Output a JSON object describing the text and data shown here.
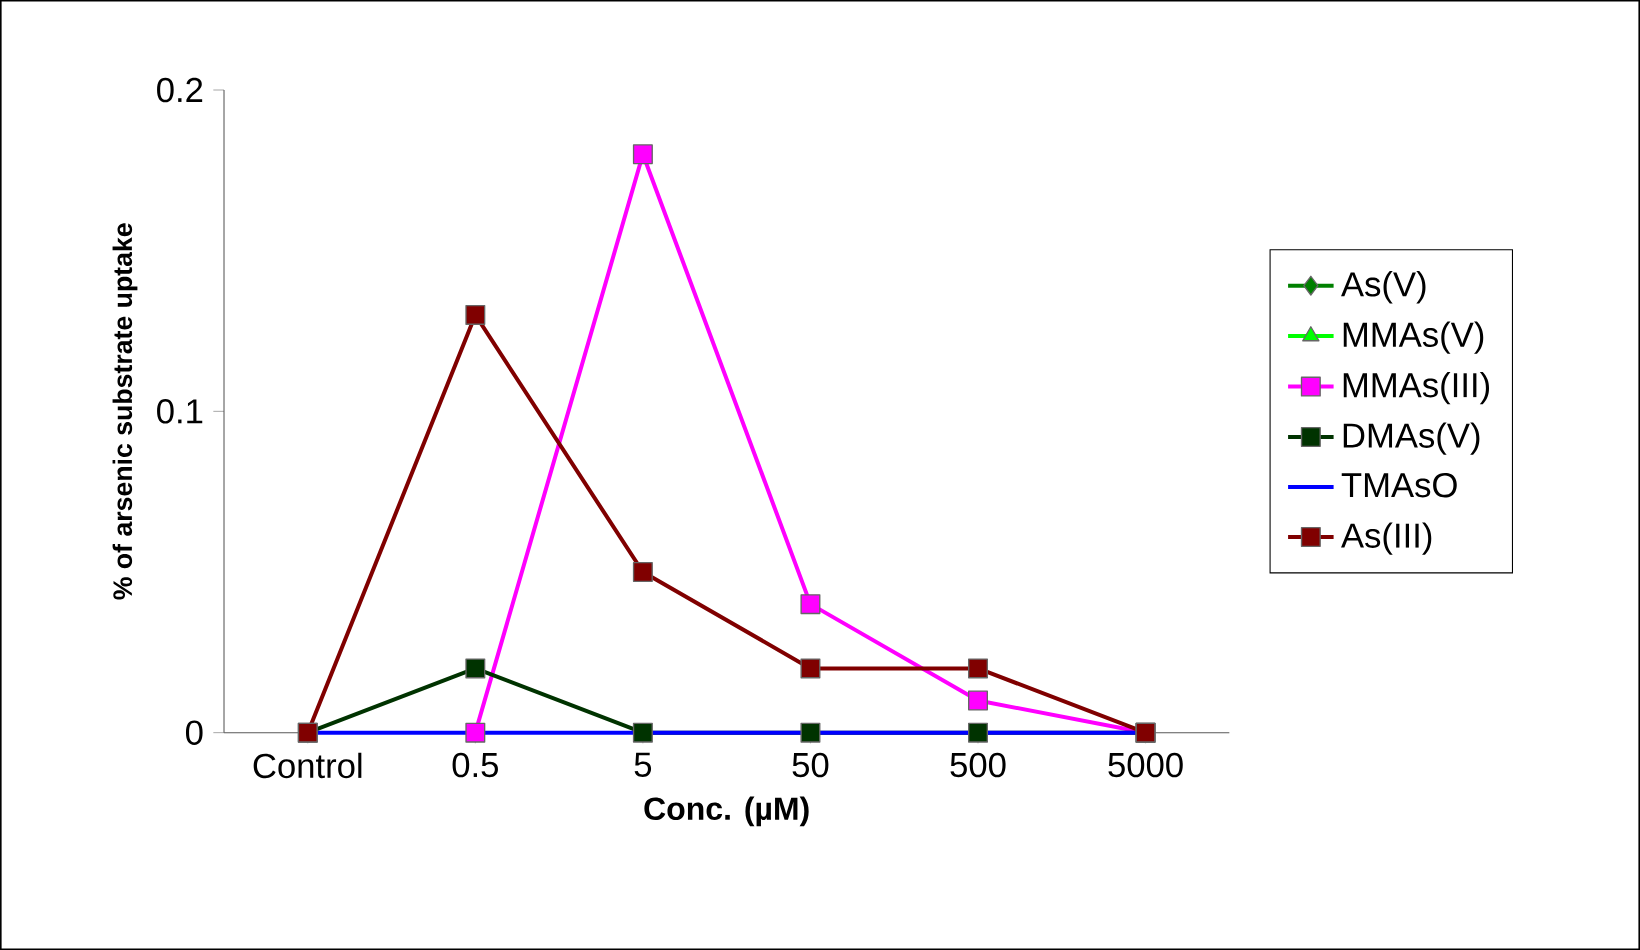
{
  "chart_data": {
    "type": "line",
    "xlabel": "Conc. (µM)",
    "ylabel": "% of arsenic substrate uptake",
    "categories": [
      "Control",
      "0.5",
      "5",
      "50",
      "500",
      "5000"
    ],
    "ylim": [
      0,
      0.2
    ],
    "yticks": [
      0,
      0.1,
      0.2
    ],
    "legend": "right",
    "series": [
      {
        "name": "As(V)",
        "color": "#008000",
        "marker": "diamond",
        "values": [
          null,
          null,
          null,
          null,
          null,
          null
        ]
      },
      {
        "name": "MMAs(V)",
        "color": "#00ff00",
        "marker": "triangle",
        "values": [
          null,
          null,
          null,
          null,
          null,
          null
        ]
      },
      {
        "name": "MMAs(III)",
        "color": "#ff00ff",
        "marker": "square",
        "values": [
          null,
          0,
          0.18,
          0.04,
          0.01,
          0
        ]
      },
      {
        "name": "DMAs(V)",
        "color": "#003300",
        "marker": "square",
        "values": [
          0,
          0.02,
          0,
          0,
          0,
          0
        ]
      },
      {
        "name": "TMAsO",
        "color": "#0000ff",
        "marker": "none",
        "values": [
          0,
          0,
          0,
          0,
          0,
          0
        ]
      },
      {
        "name": "As(III)",
        "color": "#800000",
        "marker": "square",
        "values": [
          0,
          0.13,
          0.05,
          0.02,
          0.02,
          0
        ]
      }
    ]
  }
}
